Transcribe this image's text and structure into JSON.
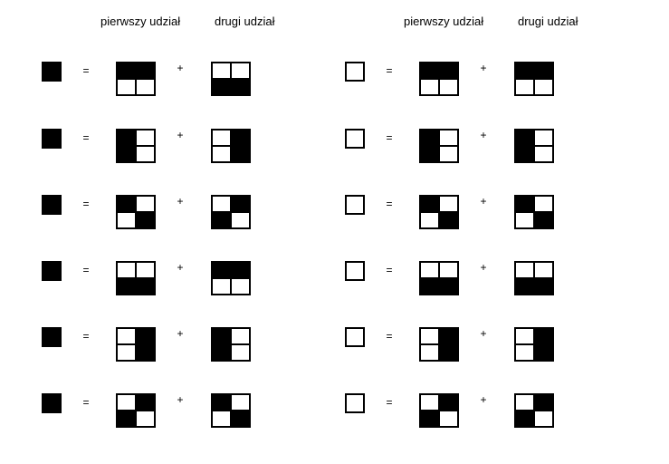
{
  "headers": {
    "first_share": "pierwszy udział",
    "second_share": "drugi udział"
  },
  "symbols": {
    "equals": "=",
    "plus": "+"
  },
  "colors": {
    "black": "#000000",
    "white": "#ffffff"
  },
  "note": "subpixel patterns listed row-major: [top-left, top-right, bottom-left, bottom-right], 1 = black, 0 = white",
  "black_pixel_rows": [
    {
      "pixel": "black",
      "first": [
        1,
        1,
        0,
        0
      ],
      "second": [
        0,
        0,
        1,
        1
      ]
    },
    {
      "pixel": "black",
      "first": [
        1,
        0,
        1,
        0
      ],
      "second": [
        0,
        1,
        0,
        1
      ]
    },
    {
      "pixel": "black",
      "first": [
        1,
        0,
        0,
        1
      ],
      "second": [
        0,
        1,
        1,
        0
      ]
    },
    {
      "pixel": "black",
      "first": [
        0,
        0,
        1,
        1
      ],
      "second": [
        1,
        1,
        0,
        0
      ]
    },
    {
      "pixel": "black",
      "first": [
        0,
        1,
        0,
        1
      ],
      "second": [
        1,
        0,
        1,
        0
      ]
    },
    {
      "pixel": "black",
      "first": [
        0,
        1,
        1,
        0
      ],
      "second": [
        1,
        0,
        0,
        1
      ]
    }
  ],
  "white_pixel_rows": [
    {
      "pixel": "white",
      "first": [
        1,
        1,
        0,
        0
      ],
      "second": [
        1,
        1,
        0,
        0
      ]
    },
    {
      "pixel": "white",
      "first": [
        1,
        0,
        1,
        0
      ],
      "second": [
        1,
        0,
        1,
        0
      ]
    },
    {
      "pixel": "white",
      "first": [
        1,
        0,
        0,
        1
      ],
      "second": [
        1,
        0,
        0,
        1
      ]
    },
    {
      "pixel": "white",
      "first": [
        0,
        0,
        1,
        1
      ],
      "second": [
        0,
        0,
        1,
        1
      ]
    },
    {
      "pixel": "white",
      "first": [
        0,
        1,
        0,
        1
      ],
      "second": [
        0,
        1,
        0,
        1
      ]
    },
    {
      "pixel": "white",
      "first": [
        0,
        1,
        1,
        0
      ],
      "second": [
        0,
        1,
        1,
        0
      ]
    }
  ]
}
